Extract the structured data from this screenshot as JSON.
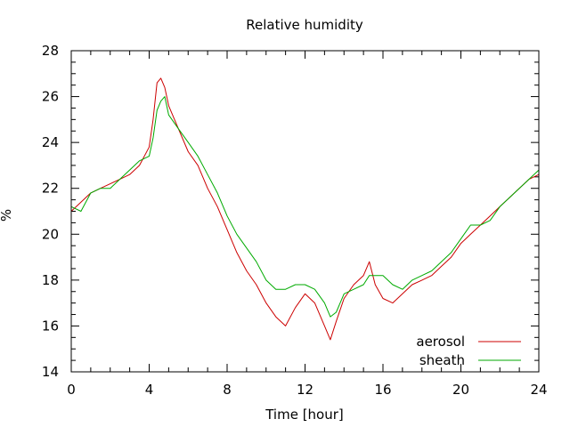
{
  "chart_data": {
    "type": "line",
    "title": "Relative humidity",
    "xlabel": "Time [hour]",
    "ylabel": "%",
    "xlim": [
      0,
      24
    ],
    "ylim": [
      14,
      28
    ],
    "x_ticks": [
      "0",
      "4",
      "8",
      "12",
      "16",
      "20",
      "24"
    ],
    "y_ticks": [
      "14",
      "16",
      "18",
      "20",
      "22",
      "24",
      "26",
      "28"
    ],
    "grid": false,
    "legend_position": "bottom-right",
    "series": [
      {
        "name": "aerosol",
        "color": "#cc0000",
        "x": [
          0,
          0.5,
          1,
          1.5,
          2,
          2.5,
          3,
          3.5,
          4,
          4.2,
          4.4,
          4.6,
          4.8,
          5,
          5.5,
          6,
          6.5,
          7,
          7.5,
          8,
          8.5,
          9,
          9.5,
          10,
          10.5,
          11,
          11.5,
          12,
          12.5,
          13,
          13.3,
          13.6,
          14,
          14.5,
          15,
          15.3,
          15.6,
          16,
          16.5,
          17,
          17.5,
          18,
          18.5,
          19,
          19.5,
          20,
          20.5,
          21,
          21.5,
          22,
          22.5,
          23,
          23.5,
          24
        ],
        "y": [
          21.0,
          21.4,
          21.8,
          22.0,
          22.2,
          22.4,
          22.6,
          23.0,
          23.8,
          25.0,
          26.6,
          26.8,
          26.4,
          25.6,
          24.6,
          23.6,
          23.0,
          22.0,
          21.2,
          20.2,
          19.2,
          18.4,
          17.8,
          17.0,
          16.4,
          16.0,
          16.8,
          17.4,
          17.0,
          16.0,
          15.4,
          16.2,
          17.2,
          17.8,
          18.2,
          18.8,
          17.8,
          17.2,
          17.0,
          17.4,
          17.8,
          18.0,
          18.2,
          18.6,
          19.0,
          19.6,
          20.0,
          20.4,
          20.8,
          21.2,
          21.6,
          22.0,
          22.4,
          22.6
        ]
      },
      {
        "name": "sheath",
        "color": "#00aa00",
        "x": [
          0,
          0.5,
          1,
          1.5,
          2,
          2.5,
          3,
          3.5,
          4,
          4.2,
          4.4,
          4.6,
          4.8,
          5,
          5.5,
          6,
          6.5,
          7,
          7.5,
          8,
          8.5,
          9,
          9.5,
          10,
          10.5,
          11,
          11.5,
          12,
          12.5,
          13,
          13.3,
          13.6,
          14,
          14.5,
          15,
          15.3,
          15.6,
          16,
          16.5,
          17,
          17.5,
          18,
          18.5,
          19,
          19.5,
          20,
          20.5,
          21,
          21.5,
          22,
          22.5,
          23,
          23.5,
          24
        ],
        "y": [
          21.2,
          21.0,
          21.8,
          22.0,
          22.0,
          22.4,
          22.8,
          23.2,
          23.4,
          24.2,
          25.4,
          25.8,
          26.0,
          25.2,
          24.6,
          24.0,
          23.4,
          22.6,
          21.8,
          20.8,
          20.0,
          19.4,
          18.8,
          18.0,
          17.6,
          17.6,
          17.8,
          17.8,
          17.6,
          17.0,
          16.4,
          16.6,
          17.4,
          17.6,
          17.8,
          18.2,
          18.2,
          18.2,
          17.8,
          17.6,
          18.0,
          18.2,
          18.4,
          18.8,
          19.2,
          19.8,
          20.4,
          20.4,
          20.6,
          21.2,
          21.6,
          22.0,
          22.4,
          22.8
        ]
      }
    ]
  }
}
